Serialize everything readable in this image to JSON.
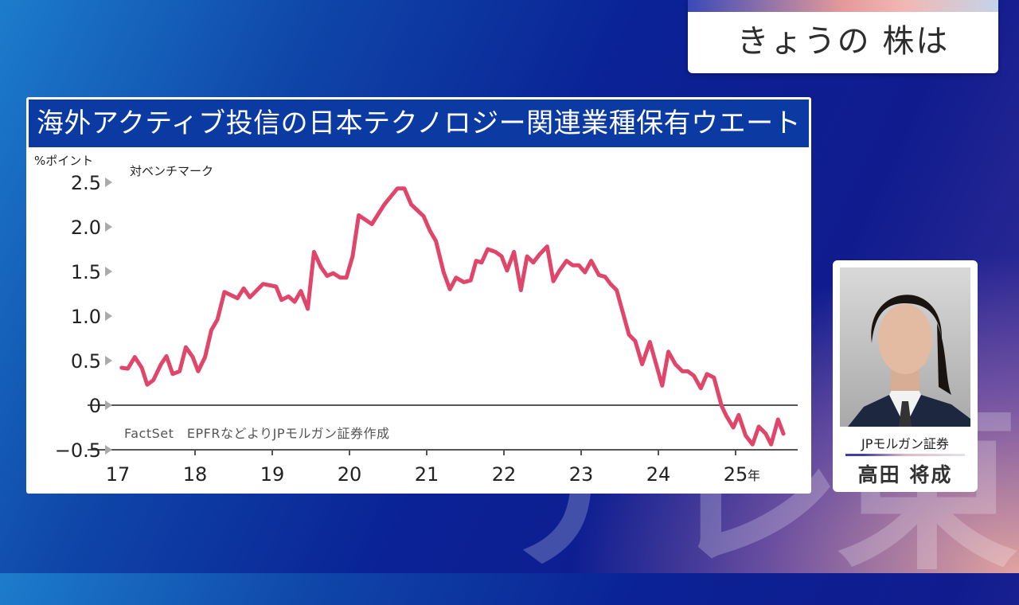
{
  "watermark": "テレ東",
  "corner": {
    "title": "きょうの 株は"
  },
  "panel": {
    "title": "海外アクティブ投信の日本テクノロジー関連業種保有ウエート",
    "unit": "%ポイント",
    "subtitle": "対ベンチマーク",
    "source": "FactSet　EPFRなどよりJPモルガン証券作成"
  },
  "person": {
    "company": "JPモルガン証券",
    "name": "高田 将成"
  },
  "chart_data": {
    "type": "line",
    "title": "海外アクティブ投信の日本テクノロジー関連業種保有ウエート",
    "ylabel": "%ポイント",
    "annotation": "対ベンチマーク",
    "ylim": [
      -0.5,
      2.5
    ],
    "yticks": [
      2.5,
      2.0,
      1.5,
      1.0,
      0.5,
      0,
      -0.5
    ],
    "ytick_labels": [
      "2.5",
      "2.0",
      "1.5",
      "1.0",
      "0.5",
      "0",
      "−0.5"
    ],
    "xlim": [
      2017,
      2025.8
    ],
    "xticks": [
      2017,
      2018,
      2019,
      2020,
      2021,
      2022,
      2023,
      2024,
      2025
    ],
    "xtick_labels": [
      "17",
      "18",
      "19",
      "20",
      "21",
      "22",
      "23",
      "24",
      "25"
    ],
    "x_unit": "年",
    "color": "#e0456a",
    "grid": false,
    "x": [
      2017.05,
      2017.13,
      2017.22,
      2017.31,
      2017.38,
      2017.46,
      2017.56,
      2017.63,
      2017.71,
      2017.8,
      2017.88,
      2017.97,
      2018.04,
      2018.13,
      2018.21,
      2018.29,
      2018.38,
      2018.55,
      2018.63,
      2018.71,
      2018.88,
      2019.05,
      2019.12,
      2019.21,
      2019.29,
      2019.37,
      2019.46,
      2019.54,
      2019.63,
      2019.71,
      2019.79,
      2019.88,
      2019.96,
      2020.04,
      2020.12,
      2020.29,
      2020.45,
      2020.62,
      2020.71,
      2020.8,
      2020.96,
      2021.04,
      2021.12,
      2021.22,
      2021.3,
      2021.38,
      2021.48,
      2021.57,
      2021.64,
      2021.71,
      2021.79,
      2021.89,
      2021.97,
      2022.04,
      2022.13,
      2022.22,
      2022.3,
      2022.38,
      2022.46,
      2022.56,
      2022.64,
      2022.72,
      2022.81,
      2022.89,
      2022.97,
      2023.05,
      2023.13,
      2023.23,
      2023.31,
      2023.38,
      2023.46,
      2023.62,
      2023.7,
      2023.79,
      2023.89,
      2024.05,
      2024.13,
      2024.22,
      2024.31,
      2024.38,
      2024.46,
      2024.55,
      2024.63,
      2024.72,
      2024.82,
      2024.88,
      2024.97,
      2025.04,
      2025.13,
      2025.22,
      2025.3,
      2025.39,
      2025.46,
      2025.55,
      2025.62
    ],
    "y": [
      0.42,
      0.41,
      0.54,
      0.42,
      0.23,
      0.28,
      0.46,
      0.55,
      0.35,
      0.38,
      0.65,
      0.54,
      0.38,
      0.54,
      0.84,
      0.96,
      1.27,
      1.2,
      1.31,
      1.21,
      1.36,
      1.33,
      1.18,
      1.22,
      1.16,
      1.28,
      1.08,
      1.72,
      1.55,
      1.45,
      1.48,
      1.43,
      1.43,
      1.67,
      2.13,
      2.03,
      2.25,
      2.43,
      2.43,
      2.25,
      2.12,
      1.96,
      1.84,
      1.49,
      1.3,
      1.43,
      1.38,
      1.4,
      1.62,
      1.6,
      1.75,
      1.72,
      1.67,
      1.51,
      1.72,
      1.29,
      1.67,
      1.6,
      1.69,
      1.78,
      1.39,
      1.51,
      1.62,
      1.57,
      1.57,
      1.49,
      1.62,
      1.46,
      1.44,
      1.36,
      1.29,
      0.79,
      0.72,
      0.46,
      0.71,
      0.22,
      0.6,
      0.46,
      0.38,
      0.38,
      0.33,
      0.19,
      0.35,
      0.31,
      -0.01,
      -0.12,
      -0.25,
      -0.11,
      -0.34,
      -0.44,
      -0.24,
      -0.32,
      -0.44,
      -0.16,
      -0.32
    ]
  }
}
